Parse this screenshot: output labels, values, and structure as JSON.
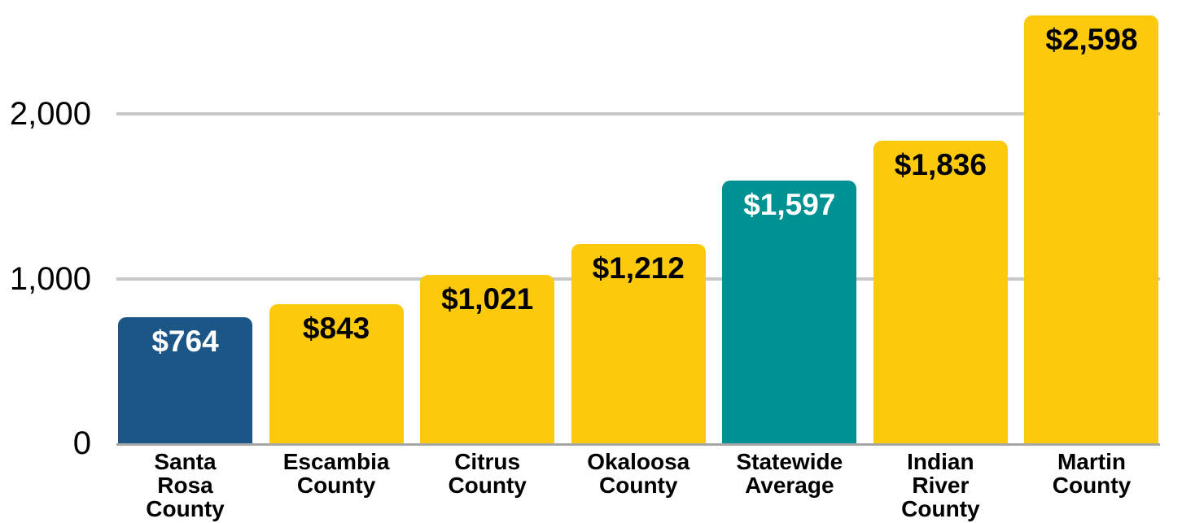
{
  "chart_data": {
    "type": "bar",
    "title": "",
    "xlabel": "",
    "ylabel": "",
    "categories": [
      "Santa Rosa County",
      "Escambia County",
      "Citrus County",
      "Okaloosa County",
      "Statewide Average",
      "Indian River County",
      "Martin County"
    ],
    "category_lines": [
      [
        "Santa",
        "Rosa",
        "County"
      ],
      [
        "Escambia",
        "County"
      ],
      [
        "Citrus",
        "County"
      ],
      [
        "Okaloosa",
        "County"
      ],
      [
        "Statewide",
        "Average"
      ],
      [
        "Indian",
        "River",
        "County"
      ],
      [
        "Martin",
        "County"
      ]
    ],
    "values": [
      764,
      843,
      1021,
      1212,
      1597,
      1836,
      2598
    ],
    "value_labels": [
      "$764",
      "$843",
      "$1,021",
      "$1,212",
      "$1,597",
      "$1,836",
      "$2,598"
    ],
    "bar_colors": [
      "#1C5687",
      "#FDC90D",
      "#FDC90D",
      "#FDC90D",
      "#009292",
      "#FDC90D",
      "#FDC90D"
    ],
    "value_label_colors": [
      "#FFFFFF",
      "#000000",
      "#000000",
      "#000000",
      "#FFFFFF",
      "#000000",
      "#000000"
    ],
    "yticks": [
      0,
      1000,
      2000
    ],
    "ytick_labels": [
      "0",
      "1,000",
      "2,000"
    ],
    "ylim": [
      0,
      2650
    ],
    "grid": "horizontal",
    "legend": "none"
  },
  "colors": {
    "background": "#FFFFFF",
    "gridline": "#C8C8C8",
    "axis_line": "#A6A6A6",
    "text": "#000000",
    "bar_gold": "#FDC90D",
    "bar_blue": "#1C5687",
    "bar_teal": "#009292"
  }
}
